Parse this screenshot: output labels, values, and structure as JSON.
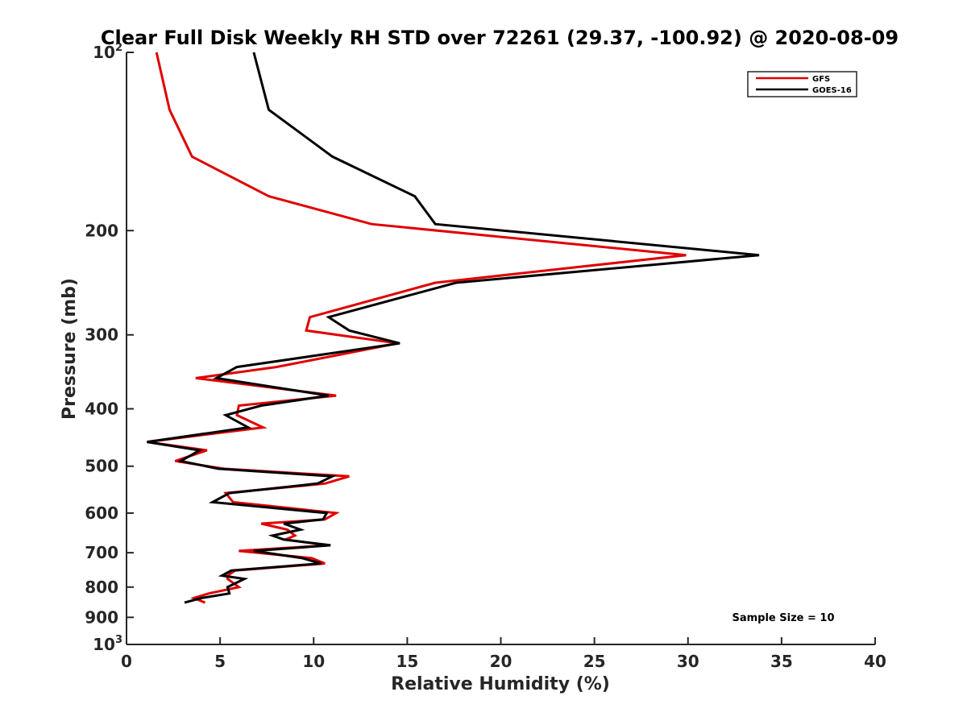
{
  "chart_data": {
    "type": "line",
    "title": "Clear Full Disk Weekly RH STD over 72261 (29.37, -100.92) @ 2020-08-09",
    "xlabel": "Relative Humidity (%)",
    "ylabel": "Pressure (mb)",
    "xlim": [
      0,
      40
    ],
    "ylim": [
      100,
      1000
    ],
    "yscale": "log",
    "y_reversed": true,
    "xticks": [
      "0",
      "5",
      "10",
      "15",
      "20",
      "25",
      "30",
      "35",
      "40"
    ],
    "yticks": [
      {
        "value": 100,
        "base": "10",
        "exp": "2"
      },
      {
        "value": 200,
        "label": "200"
      },
      {
        "value": 300,
        "label": "300"
      },
      {
        "value": 400,
        "label": "400"
      },
      {
        "value": 500,
        "label": "500"
      },
      {
        "value": 600,
        "label": "600"
      },
      {
        "value": 700,
        "label": "700"
      },
      {
        "value": 800,
        "label": "800"
      },
      {
        "value": 900,
        "label": "900"
      },
      {
        "value": 1000,
        "base": "10",
        "exp": "3"
      }
    ],
    "legend_position": "top-right",
    "annotation": "Sample Size = 10",
    "grid": false,
    "series": [
      {
        "name": "GFS",
        "color": "#e00000",
        "points": [
          [
            1.6,
            100
          ],
          [
            2.3,
            125
          ],
          [
            3.5,
            150
          ],
          [
            7.6,
            175
          ],
          [
            13.1,
            195
          ],
          [
            29.9,
            220
          ],
          [
            16.5,
            245
          ],
          [
            9.8,
            280
          ],
          [
            9.6,
            295
          ],
          [
            14.5,
            310
          ],
          [
            8.0,
            340
          ],
          [
            3.7,
            355
          ],
          [
            11.2,
            380
          ],
          [
            6.0,
            395
          ],
          [
            5.9,
            410
          ],
          [
            7.3,
            430
          ],
          [
            1.1,
            455
          ],
          [
            4.3,
            470
          ],
          [
            2.6,
            490
          ],
          [
            5.2,
            505
          ],
          [
            11.9,
            520
          ],
          [
            10.6,
            535
          ],
          [
            5.3,
            555
          ],
          [
            5.7,
            575
          ],
          [
            11.2,
            600
          ],
          [
            10.6,
            615
          ],
          [
            7.2,
            625
          ],
          [
            8.6,
            640
          ],
          [
            9.0,
            655
          ],
          [
            8.5,
            665
          ],
          [
            10.8,
            680
          ],
          [
            6.0,
            695
          ],
          [
            9.9,
            715
          ],
          [
            10.6,
            730
          ],
          [
            5.8,
            750
          ],
          [
            5.4,
            765
          ],
          [
            5.4,
            775
          ],
          [
            6.0,
            800
          ],
          [
            4.4,
            820
          ],
          [
            3.6,
            835
          ],
          [
            4.2,
            850
          ]
        ]
      },
      {
        "name": "GOES-16",
        "color": "#000000",
        "points": [
          [
            6.8,
            100
          ],
          [
            7.6,
            125
          ],
          [
            11.0,
            150
          ],
          [
            15.4,
            175
          ],
          [
            16.5,
            195
          ],
          [
            33.8,
            220
          ],
          [
            17.6,
            245
          ],
          [
            10.8,
            280
          ],
          [
            11.9,
            295
          ],
          [
            14.6,
            310
          ],
          [
            5.9,
            340
          ],
          [
            4.8,
            355
          ],
          [
            10.8,
            380
          ],
          [
            7.2,
            395
          ],
          [
            5.3,
            410
          ],
          [
            6.5,
            430
          ],
          [
            1.1,
            455
          ],
          [
            3.9,
            470
          ],
          [
            2.9,
            490
          ],
          [
            4.9,
            505
          ],
          [
            11.0,
            520
          ],
          [
            10.2,
            535
          ],
          [
            5.5,
            555
          ],
          [
            4.6,
            575
          ],
          [
            10.7,
            600
          ],
          [
            10.5,
            615
          ],
          [
            8.4,
            625
          ],
          [
            9.3,
            640
          ],
          [
            7.8,
            655
          ],
          [
            8.4,
            665
          ],
          [
            10.9,
            680
          ],
          [
            6.8,
            695
          ],
          [
            9.4,
            715
          ],
          [
            10.4,
            730
          ],
          [
            5.6,
            750
          ],
          [
            5.1,
            765
          ],
          [
            6.3,
            775
          ],
          [
            5.4,
            800
          ],
          [
            5.5,
            820
          ],
          [
            4.0,
            835
          ],
          [
            3.1,
            850
          ]
        ]
      }
    ]
  }
}
